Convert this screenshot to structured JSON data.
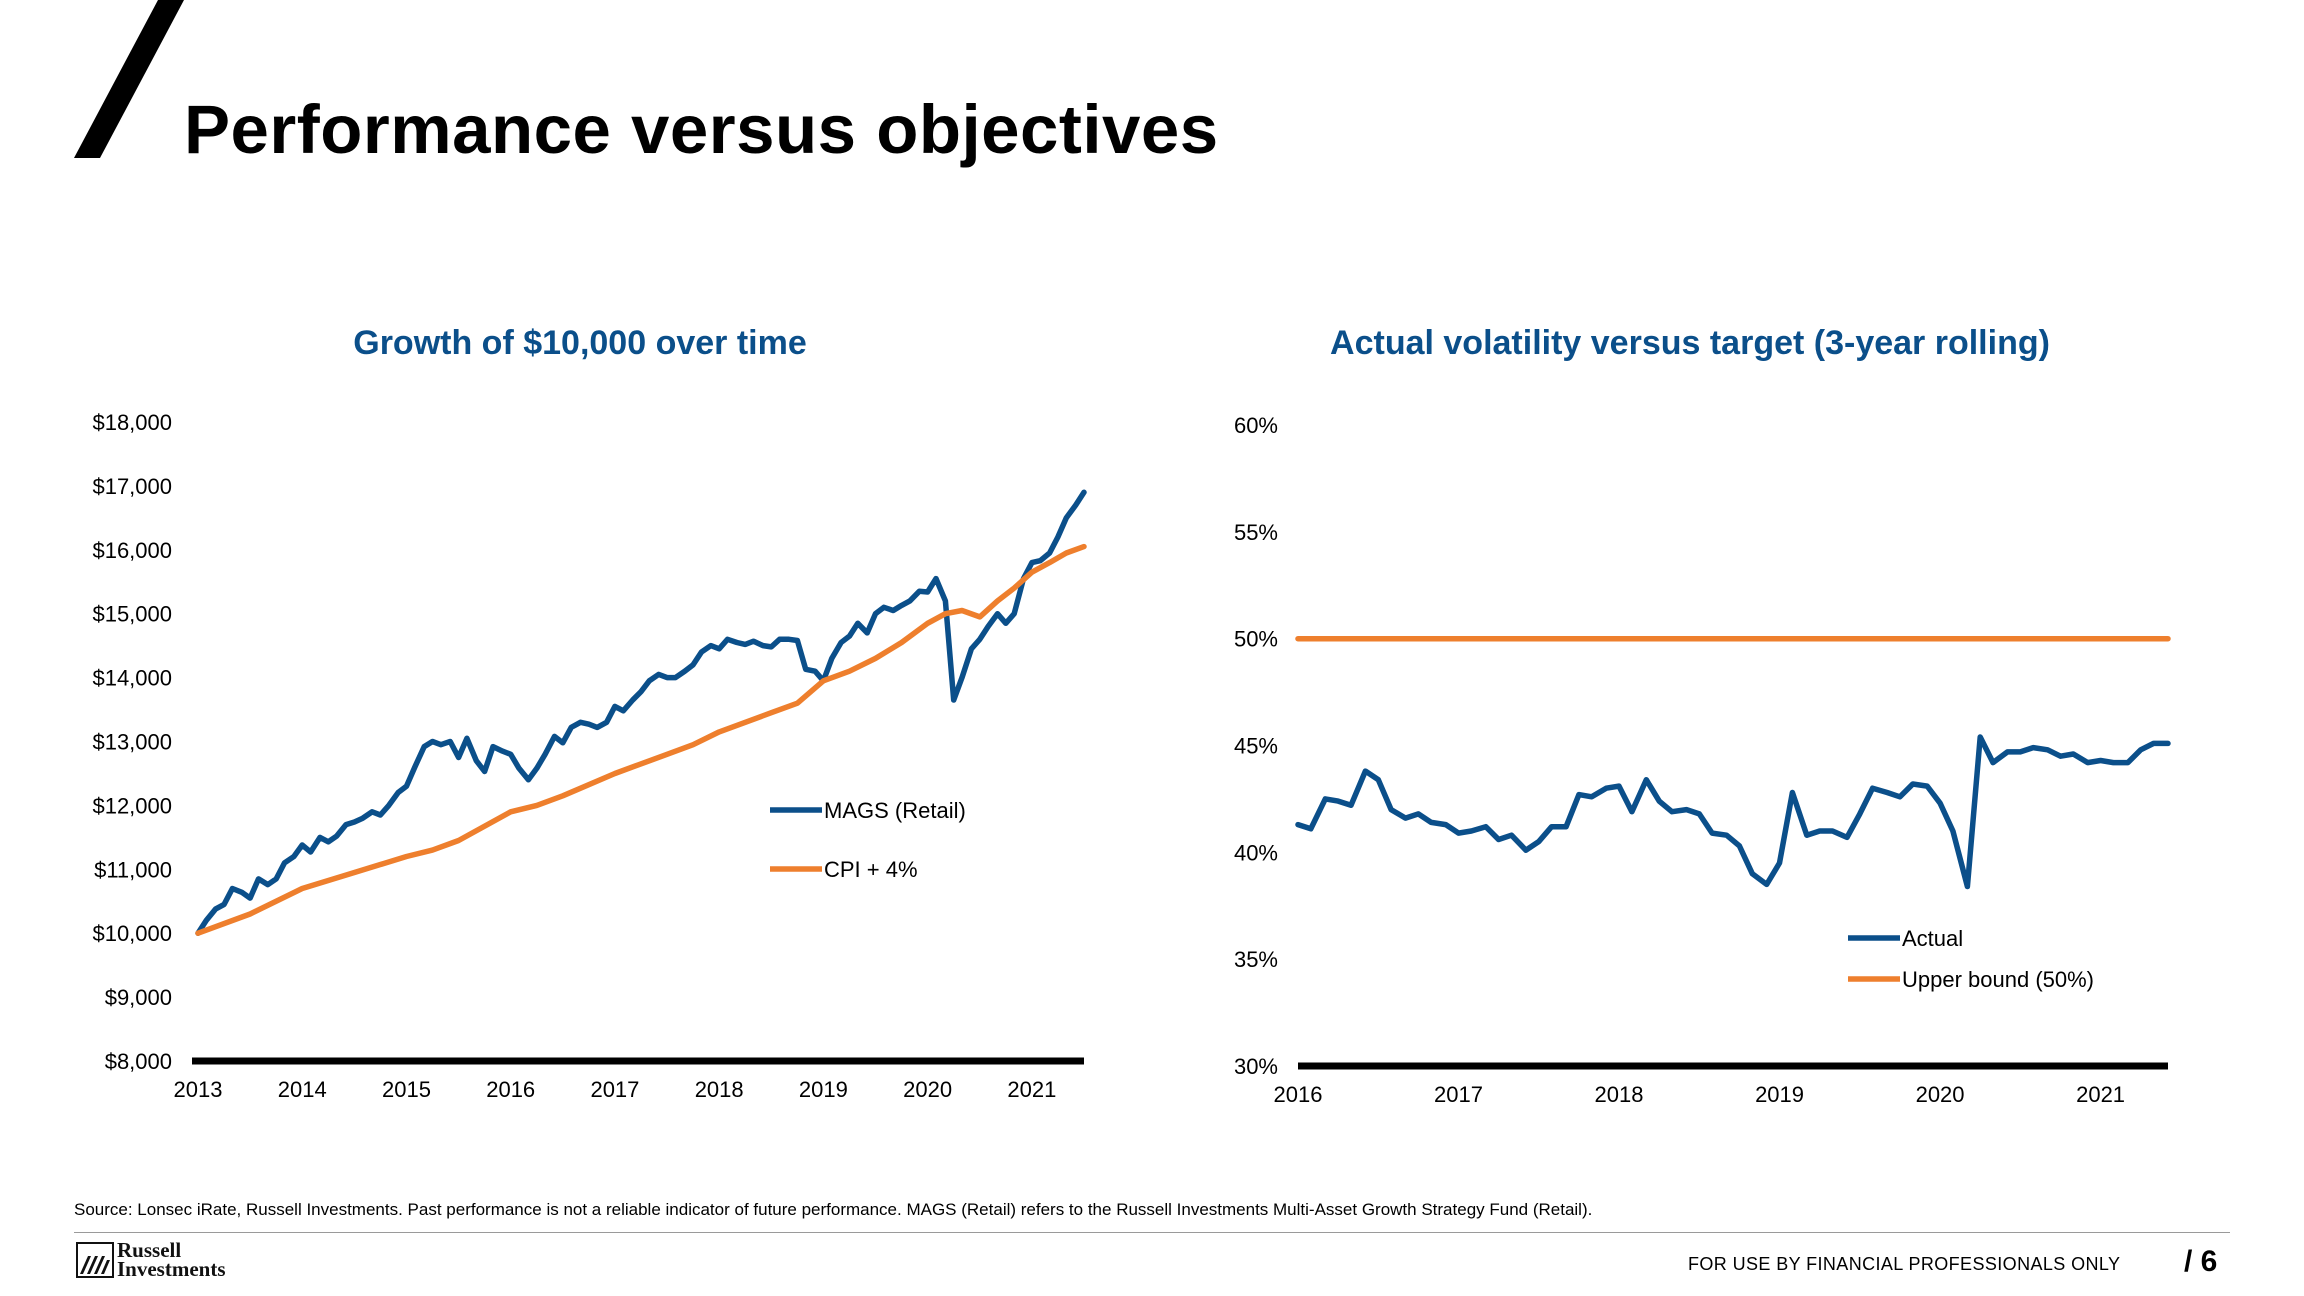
{
  "title": "Performance versus objectives",
  "chart_data": [
    {
      "type": "line",
      "title": "Growth of $10,000 over time",
      "xlabel": "",
      "ylabel": "",
      "xlim": [
        2013,
        2021.5
      ],
      "ylim": [
        8000,
        18000
      ],
      "x_ticks": [
        "2013",
        "2014",
        "2015",
        "2016",
        "2017",
        "2018",
        "2019",
        "2020",
        "2021"
      ],
      "y_ticks": [
        "$8,000",
        "$9,000",
        "$10,000",
        "$11,000",
        "$12,000",
        "$13,000",
        "$14,000",
        "$15,000",
        "$16,000",
        "$17,000",
        "$18,000"
      ],
      "legend_position": "center-right",
      "series": [
        {
          "name": "MAGS (Retail)",
          "color": "#0b4f8a",
          "points": [
            [
              2013.0,
              10000
            ],
            [
              2013.08,
              10200
            ],
            [
              2013.17,
              10380
            ],
            [
              2013.25,
              10450
            ],
            [
              2013.33,
              10700
            ],
            [
              2013.42,
              10640
            ],
            [
              2013.5,
              10550
            ],
            [
              2013.58,
              10850
            ],
            [
              2013.67,
              10760
            ],
            [
              2013.75,
              10850
            ],
            [
              2013.83,
              11100
            ],
            [
              2013.92,
              11200
            ],
            [
              2014.0,
              11380
            ],
            [
              2014.08,
              11270
            ],
            [
              2014.17,
              11500
            ],
            [
              2014.25,
              11430
            ],
            [
              2014.33,
              11520
            ],
            [
              2014.42,
              11700
            ],
            [
              2014.5,
              11740
            ],
            [
              2014.58,
              11800
            ],
            [
              2014.67,
              11900
            ],
            [
              2014.75,
              11850
            ],
            [
              2014.83,
              12000
            ],
            [
              2014.92,
              12200
            ],
            [
              2015.0,
              12300
            ],
            [
              2015.08,
              12600
            ],
            [
              2015.17,
              12920
            ],
            [
              2015.25,
              13000
            ],
            [
              2015.33,
              12950
            ],
            [
              2015.42,
              13000
            ],
            [
              2015.5,
              12750
            ],
            [
              2015.58,
              13050
            ],
            [
              2015.67,
              12700
            ],
            [
              2015.75,
              12530
            ],
            [
              2015.83,
              12920
            ],
            [
              2015.92,
              12850
            ],
            [
              2016.0,
              12800
            ],
            [
              2016.08,
              12580
            ],
            [
              2016.17,
              12400
            ],
            [
              2016.25,
              12580
            ],
            [
              2016.33,
              12800
            ],
            [
              2016.42,
              13080
            ],
            [
              2016.5,
              12980
            ],
            [
              2016.58,
              13220
            ],
            [
              2016.67,
              13300
            ],
            [
              2016.75,
              13270
            ],
            [
              2016.83,
              13220
            ],
            [
              2016.92,
              13300
            ],
            [
              2017.0,
              13550
            ],
            [
              2017.08,
              13480
            ],
            [
              2017.17,
              13650
            ],
            [
              2017.25,
              13780
            ],
            [
              2017.33,
              13950
            ],
            [
              2017.42,
              14050
            ],
            [
              2017.5,
              14000
            ],
            [
              2017.58,
              14000
            ],
            [
              2017.67,
              14100
            ],
            [
              2017.75,
              14200
            ],
            [
              2017.83,
              14400
            ],
            [
              2017.92,
              14500
            ],
            [
              2018.0,
              14450
            ],
            [
              2018.08,
              14600
            ],
            [
              2018.17,
              14550
            ],
            [
              2018.25,
              14520
            ],
            [
              2018.33,
              14570
            ],
            [
              2018.42,
              14500
            ],
            [
              2018.5,
              14480
            ],
            [
              2018.58,
              14600
            ],
            [
              2018.67,
              14600
            ],
            [
              2018.75,
              14580
            ],
            [
              2018.83,
              14130
            ],
            [
              2018.92,
              14100
            ],
            [
              2019.0,
              13950
            ],
            [
              2019.08,
              14300
            ],
            [
              2019.17,
              14550
            ],
            [
              2019.25,
              14650
            ],
            [
              2019.33,
              14850
            ],
            [
              2019.42,
              14700
            ],
            [
              2019.5,
              15000
            ],
            [
              2019.58,
              15100
            ],
            [
              2019.67,
              15050
            ],
            [
              2019.75,
              15130
            ],
            [
              2019.83,
              15200
            ],
            [
              2019.92,
              15350
            ],
            [
              2020.0,
              15340
            ],
            [
              2020.08,
              15550
            ],
            [
              2020.17,
              15200
            ],
            [
              2020.25,
              13650
            ],
            [
              2020.33,
              14000
            ],
            [
              2020.42,
              14450
            ],
            [
              2020.5,
              14600
            ],
            [
              2020.58,
              14800
            ],
            [
              2020.67,
              15000
            ],
            [
              2020.75,
              14850
            ],
            [
              2020.83,
              15000
            ],
            [
              2020.92,
              15550
            ],
            [
              2021.0,
              15800
            ],
            [
              2021.08,
              15830
            ],
            [
              2021.17,
              15950
            ],
            [
              2021.25,
              16200
            ],
            [
              2021.33,
              16500
            ],
            [
              2021.42,
              16700
            ],
            [
              2021.5,
              16900
            ]
          ]
        },
        {
          "name": "CPI + 4%",
          "color": "#ee7f2d",
          "points": [
            [
              2013.0,
              10000
            ],
            [
              2013.5,
              10300
            ],
            [
              2014.0,
              10700
            ],
            [
              2014.5,
              10950
            ],
            [
              2015.0,
              11200
            ],
            [
              2015.25,
              11300
            ],
            [
              2015.5,
              11450
            ],
            [
              2016.0,
              11900
            ],
            [
              2016.25,
              12000
            ],
            [
              2016.5,
              12150
            ],
            [
              2017.0,
              12500
            ],
            [
              2017.5,
              12800
            ],
            [
              2017.75,
              12950
            ],
            [
              2018.0,
              13150
            ],
            [
              2018.5,
              13450
            ],
            [
              2018.75,
              13600
            ],
            [
              2019.0,
              13950
            ],
            [
              2019.25,
              14100
            ],
            [
              2019.5,
              14300
            ],
            [
              2019.75,
              14550
            ],
            [
              2020.0,
              14850
            ],
            [
              2020.17,
              15000
            ],
            [
              2020.33,
              15050
            ],
            [
              2020.5,
              14950
            ],
            [
              2020.67,
              15200
            ],
            [
              2020.83,
              15400
            ],
            [
              2021.0,
              15650
            ],
            [
              2021.17,
              15800
            ],
            [
              2021.33,
              15950
            ],
            [
              2021.5,
              16050
            ]
          ]
        }
      ]
    },
    {
      "type": "line",
      "title": "Actual volatility versus target (3-year rolling)",
      "xlabel": "",
      "ylabel": "",
      "xlim": [
        2016,
        2021.42
      ],
      "ylim": [
        30,
        60
      ],
      "x_ticks": [
        "2016",
        "2017",
        "2018",
        "2019",
        "2020",
        "2021"
      ],
      "y_ticks": [
        "30%",
        "35%",
        "40%",
        "45%",
        "50%",
        "55%",
        "60%"
      ],
      "legend_position": "bottom-right",
      "series": [
        {
          "name": "Actual",
          "color": "#0b4f8a",
          "points": [
            [
              2016.0,
              41.3
            ],
            [
              2016.08,
              41.1
            ],
            [
              2016.17,
              42.5
            ],
            [
              2016.25,
              42.4
            ],
            [
              2016.33,
              42.2
            ],
            [
              2016.42,
              43.8
            ],
            [
              2016.5,
              43.4
            ],
            [
              2016.58,
              42.0
            ],
            [
              2016.67,
              41.6
            ],
            [
              2016.75,
              41.8
            ],
            [
              2016.83,
              41.4
            ],
            [
              2016.92,
              41.3
            ],
            [
              2017.0,
              40.9
            ],
            [
              2017.08,
              41.0
            ],
            [
              2017.17,
              41.2
            ],
            [
              2017.25,
              40.6
            ],
            [
              2017.33,
              40.8
            ],
            [
              2017.42,
              40.1
            ],
            [
              2017.5,
              40.5
            ],
            [
              2017.58,
              41.2
            ],
            [
              2017.67,
              41.2
            ],
            [
              2017.75,
              42.7
            ],
            [
              2017.83,
              42.6
            ],
            [
              2017.92,
              43.0
            ],
            [
              2018.0,
              43.1
            ],
            [
              2018.08,
              41.9
            ],
            [
              2018.17,
              43.4
            ],
            [
              2018.25,
              42.4
            ],
            [
              2018.33,
              41.9
            ],
            [
              2018.42,
              42.0
            ],
            [
              2018.5,
              41.8
            ],
            [
              2018.58,
              40.9
            ],
            [
              2018.67,
              40.8
            ],
            [
              2018.75,
              40.3
            ],
            [
              2018.83,
              39.0
            ],
            [
              2018.92,
              38.5
            ],
            [
              2019.0,
              39.5
            ],
            [
              2019.08,
              42.8
            ],
            [
              2019.17,
              40.8
            ],
            [
              2019.25,
              41.0
            ],
            [
              2019.33,
              41.0
            ],
            [
              2019.42,
              40.7
            ],
            [
              2019.5,
              41.8
            ],
            [
              2019.58,
              43.0
            ],
            [
              2019.67,
              42.8
            ],
            [
              2019.75,
              42.6
            ],
            [
              2019.83,
              43.2
            ],
            [
              2019.92,
              43.1
            ],
            [
              2020.0,
              42.3
            ],
            [
              2020.08,
              41.0
            ],
            [
              2020.17,
              38.4
            ],
            [
              2020.25,
              45.4
            ],
            [
              2020.33,
              44.2
            ],
            [
              2020.42,
              44.7
            ],
            [
              2020.5,
              44.7
            ],
            [
              2020.58,
              44.9
            ],
            [
              2020.67,
              44.8
            ],
            [
              2020.75,
              44.5
            ],
            [
              2020.83,
              44.6
            ],
            [
              2020.92,
              44.2
            ],
            [
              2021.0,
              44.3
            ],
            [
              2021.08,
              44.2
            ],
            [
              2021.17,
              44.2
            ],
            [
              2021.25,
              44.8
            ],
            [
              2021.33,
              45.1
            ],
            [
              2021.42,
              45.1
            ]
          ]
        },
        {
          "name": "Upper bound (50%)",
          "color": "#ee7f2d",
          "points": [
            [
              2016.0,
              50
            ],
            [
              2021.42,
              50
            ]
          ]
        }
      ]
    }
  ],
  "footnote": "Source: Lonsec iRate, Russell Investments. Past performance is not a reliable indicator of future performance. MAGS (Retail) refers to the Russell Investments Multi-Asset Growth Strategy Fund (Retail).",
  "footer": {
    "logo_line1": "Russell",
    "logo_line2": "Investments",
    "disclaimer": "FOR USE BY FINANCIAL PROFESSIONALS ONLY",
    "page_number": "/  6"
  }
}
